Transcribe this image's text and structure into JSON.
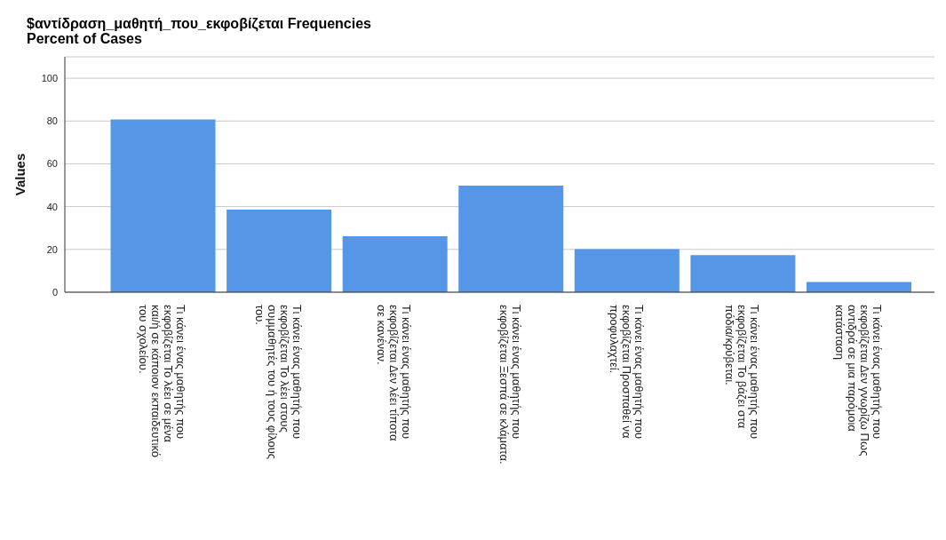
{
  "chart_data": {
    "type": "bar",
    "title": "$αντίδραση_μαθητή_που_εκφοβίζεται Frequencies",
    "subtitle": "Percent of Cases",
    "ylabel": "Values",
    "categories": [
      "Τι κάνει ένας μαθητής που εκφοβίζεται Το λέει σε μένα και/ή σε κάποιον εκπαιδευτικό του σχολείου.",
      "Τι κάνει ένας μαθητής που εκφοβίζεται Το λέει στους συμμαθητές του ή τους φίλους του.",
      "Τι κάνει ένας μαθητής που εκφοβίζεται Δεν λέει τίποτα σε κανέναν.",
      "Τι κάνει ένας μαθητής που εκφοβίζεται Ξεσπά σε κλάματα.",
      "Τι κάνει ένας μαθητής που εκφοβίζεται Προσπαθεί να προφυλαχτεί.",
      "Τι κάνει ένας μαθητής που εκφοβίζεται Το βάζει στα πόδια/κρύβεται.",
      "Τι κάνει ένας μαθητής που εκφοβίζεται Δεν γνωρίζω Πως αντιδρά σε μια παρόμοια κατάσταση"
    ],
    "values": [
      80.7,
      38.6,
      26.1,
      49.8,
      20.1,
      17.3,
      4.8
    ],
    "color": "#5596e6",
    "ylim": [
      0,
      110
    ],
    "yticks": [
      0,
      20,
      40,
      60,
      80,
      100
    ],
    "grid": "y"
  }
}
